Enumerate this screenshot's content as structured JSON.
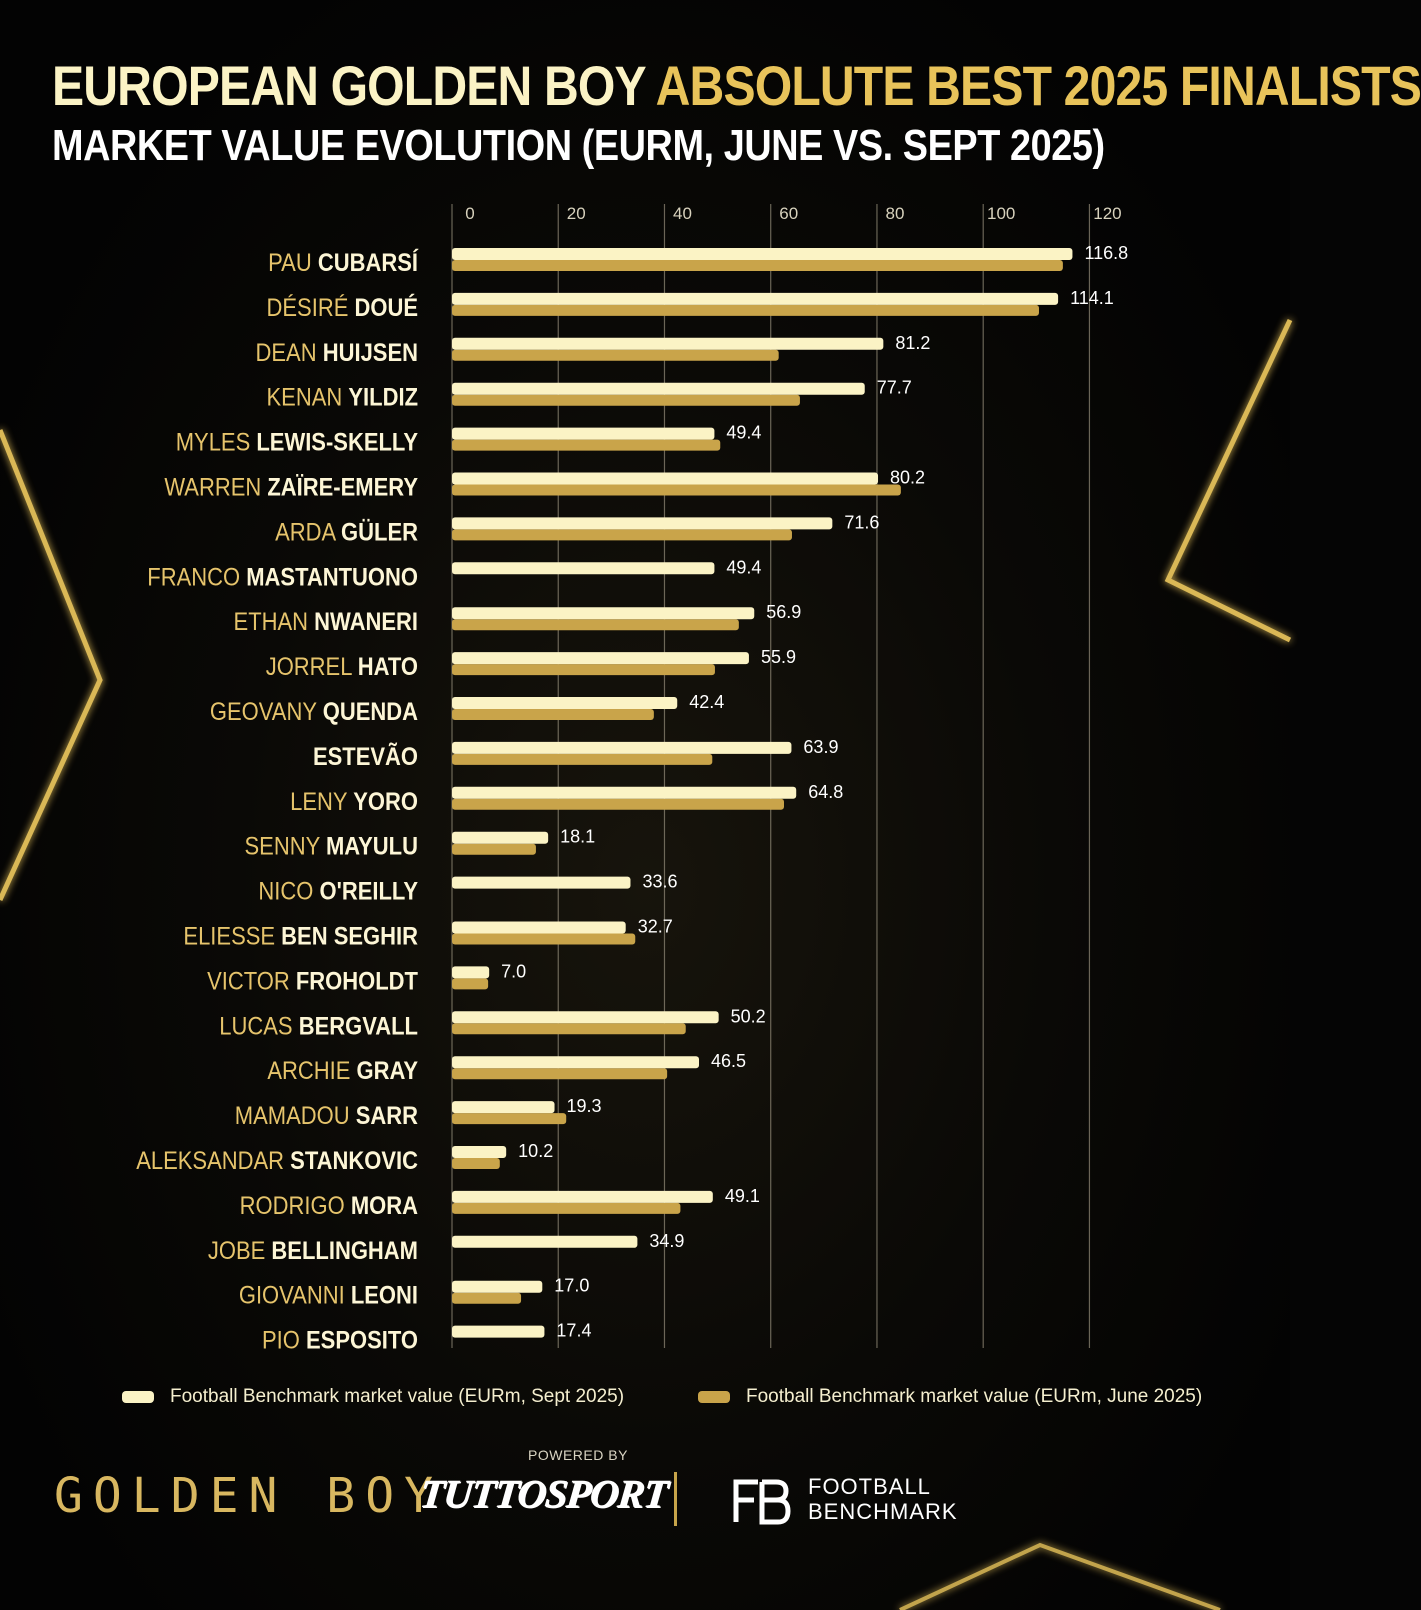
{
  "header": {
    "title_white": "EUROPEAN GOLDEN BOY ",
    "title_gold": "ABSOLUTE BEST 2025 FINALISTS",
    "subtitle": "MARKET VALUE EVOLUTION (EURM, JUNE VS. SEPT 2025)"
  },
  "colors": {
    "sept_bar": "#fbf3c5",
    "june_bar": "#c9a44a",
    "first_name": "#e6c46c",
    "last_name": "#fdf6d6",
    "value_label": "#ffffff",
    "gridline": "#8c8573",
    "tick_label": "#d8d2bd"
  },
  "chart_data": {
    "type": "bar",
    "orientation": "horizontal",
    "xlim": [
      0,
      120
    ],
    "x_ticks": [
      0,
      20,
      40,
      60,
      80,
      100,
      120
    ],
    "grid": true,
    "legend_position": "bottom",
    "value_labels_series": "Football Benchmark market value (EURm, Sept 2025)",
    "categories": [
      {
        "first": "PAU",
        "last": "CUBARSÍ"
      },
      {
        "first": "DÉSIRÉ",
        "last": "DOUÉ"
      },
      {
        "first": "DEAN",
        "last": "HUIJSEN"
      },
      {
        "first": "KENAN",
        "last": "YILDIZ"
      },
      {
        "first": "MYLES",
        "last": "LEWIS-SKELLY"
      },
      {
        "first": "WARREN",
        "last": "ZAÏRE-EMERY"
      },
      {
        "first": "ARDA",
        "last": "GÜLER"
      },
      {
        "first": "FRANCO",
        "last": "MASTANTUONO"
      },
      {
        "first": "ETHAN",
        "last": "NWANERI"
      },
      {
        "first": "JORREL",
        "last": "HATO"
      },
      {
        "first": "GEOVANY",
        "last": "QUENDA"
      },
      {
        "first": "",
        "last": "ESTEVÃO"
      },
      {
        "first": "LENY",
        "last": "YORO"
      },
      {
        "first": "SENNY",
        "last": "MAYULU"
      },
      {
        "first": "NICO",
        "last": "O'REILLY"
      },
      {
        "first": "ELIESSE",
        "last": "BEN SEGHIR"
      },
      {
        "first": "VICTOR",
        "last": "FROHOLDT"
      },
      {
        "first": "LUCAS",
        "last": "BERGVALL"
      },
      {
        "first": "ARCHIE",
        "last": "GRAY"
      },
      {
        "first": "MAMADOU",
        "last": "SARR"
      },
      {
        "first": "ALEKSANDAR",
        "last": "STANKOVIC"
      },
      {
        "first": "RODRIGO",
        "last": "MORA"
      },
      {
        "first": "JOBE",
        "last": "BELLINGHAM"
      },
      {
        "first": "GIOVANNI",
        "last": "LEONI"
      },
      {
        "first": "PIO",
        "last": "ESPOSITO"
      }
    ],
    "value_labels": [
      "116.8",
      "114.1",
      "81.2",
      "77.7",
      "49.4",
      "80.2",
      "71.6",
      "49.4",
      "56.9",
      "55.9",
      "42.4",
      "63.9",
      "64.8",
      "18.1",
      "33.6",
      "32.7",
      "7.0",
      "50.2",
      "46.5",
      "19.3",
      "10.2",
      "49.1",
      "34.9",
      "17.0",
      "17.4"
    ],
    "series": [
      {
        "name": "Football Benchmark market value (EURm, Sept 2025)",
        "values": [
          116.8,
          114.1,
          81.2,
          77.7,
          49.4,
          80.2,
          71.6,
          49.4,
          56.9,
          55.9,
          42.4,
          63.9,
          64.8,
          18.1,
          33.6,
          32.7,
          7.0,
          50.2,
          46.5,
          19.3,
          10.2,
          49.1,
          34.9,
          17.0,
          17.4
        ]
      },
      {
        "name": "Football Benchmark market value (EURm, June 2025)",
        "values": [
          115.0,
          110.5,
          61.5,
          65.5,
          50.5,
          84.5,
          64.0,
          null,
          54.0,
          49.5,
          38.0,
          49.0,
          62.5,
          15.8,
          null,
          34.5,
          6.8,
          44.0,
          40.5,
          21.5,
          9.0,
          43.0,
          null,
          13.0,
          null
        ]
      }
    ]
  },
  "footer": {
    "powered_by": "POWERED BY",
    "logo_golden_boy": "GOLDEN BOY",
    "logo_tuttosport": "TUTTOSPORT",
    "logo_fb_line1": "FOOTBALL",
    "logo_fb_line2": "BENCHMARK"
  }
}
